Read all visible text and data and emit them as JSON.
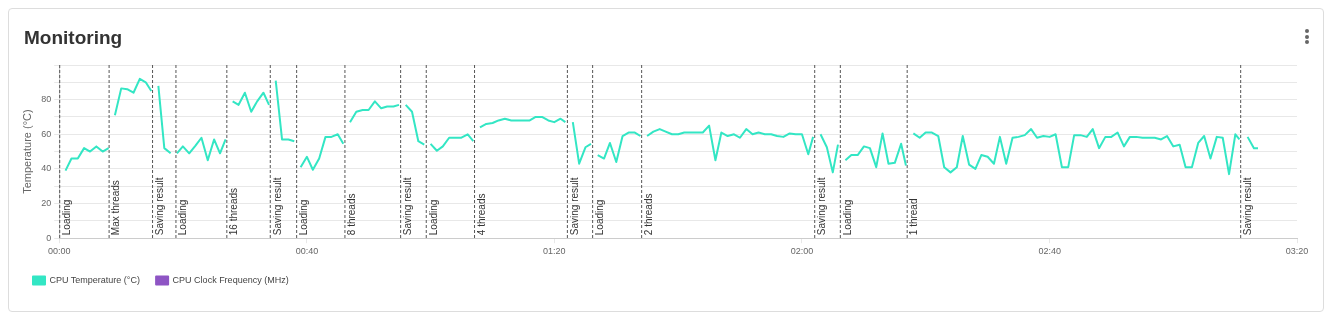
{
  "chart_data": {
    "type": "line",
    "title": "Monitoring",
    "ylabel": "Temperature (°C)",
    "xlim": [
      0,
      3.333
    ],
    "xticks": [
      {
        "value": 0,
        "label": "00:00"
      },
      {
        "value": 0.667,
        "label": "00:40"
      },
      {
        "value": 1.333,
        "label": "01:20"
      },
      {
        "value": 2,
        "label": "02:00"
      },
      {
        "value": 2.667,
        "label": "02:40"
      },
      {
        "value": 3.333,
        "label": "03:20"
      }
    ],
    "ylim": [
      0,
      100
    ],
    "yticks": [
      0,
      {
        "value": 10,
        "label": null
      },
      20,
      {
        "value": 30,
        "label": null
      },
      40,
      {
        "value": 50,
        "label": null
      },
      60,
      {
        "value": 70,
        "label": null
      },
      80,
      {
        "value": 90,
        "label": null
      },
      {
        "value": 100,
        "label": null
      }
    ],
    "grid": "y",
    "legend": "bottom",
    "series": [
      {
        "name": "CPU Temperature (°C)",
        "color": "#33e6c4",
        "x": [
          0.017,
          0.033,
          0.05,
          0.067,
          0.083,
          0.1,
          0.117,
          0.133,
          null,
          0.15,
          0.167,
          0.183,
          0.2,
          0.217,
          0.233,
          0.248,
          null,
          0.267,
          0.283,
          0.3,
          null,
          0.317,
          0.333,
          0.35,
          0.367,
          0.383,
          0.4,
          0.417,
          0.433,
          0.448,
          null,
          0.467,
          0.483,
          0.5,
          0.517,
          0.533,
          0.55,
          0.565,
          null,
          0.583,
          0.6,
          0.617,
          0.633,
          null,
          0.65,
          0.667,
          0.683,
          0.7,
          0.717,
          0.733,
          0.75,
          0.765,
          null,
          0.783,
          0.8,
          0.817,
          0.833,
          0.85,
          0.867,
          0.883,
          0.9,
          0.915,
          null,
          0.933,
          0.95,
          0.967,
          0.983,
          null,
          1.0,
          1.017,
          1.033,
          1.05,
          1.067,
          1.083,
          1.1,
          1.115,
          null,
          1.133,
          1.15,
          1.167,
          1.183,
          1.2,
          1.217,
          1.233,
          1.25,
          1.267,
          1.283,
          1.3,
          1.317,
          1.333,
          1.35,
          1.363,
          null,
          1.383,
          1.4,
          1.417,
          1.432,
          null,
          1.45,
          1.467,
          1.483,
          1.5,
          1.517,
          1.533,
          1.55,
          1.565,
          null,
          1.583,
          1.6,
          1.617,
          1.633,
          1.65,
          1.667,
          1.683,
          1.7,
          1.717,
          1.733,
          1.75,
          1.767,
          1.783,
          1.8,
          1.817,
          1.833,
          1.85,
          1.867,
          1.883,
          1.9,
          1.917,
          1.933,
          1.95,
          1.967,
          1.983,
          2.0,
          2.017,
          2.03,
          null,
          2.05,
          2.067,
          2.083,
          2.097,
          null,
          2.117,
          2.133,
          2.15,
          2.167,
          2.183,
          2.2,
          2.217,
          2.233,
          2.25,
          2.267,
          2.28,
          null,
          2.3,
          2.317,
          2.333,
          2.35,
          2.367,
          2.383,
          2.4,
          2.417,
          2.433,
          2.45,
          2.467,
          2.483,
          2.5,
          2.517,
          2.533,
          2.55,
          2.567,
          2.583,
          2.6,
          2.617,
          2.633,
          2.65,
          2.667,
          2.683,
          2.7,
          2.717,
          2.733,
          2.75,
          2.767,
          2.783,
          2.8,
          2.817,
          2.833,
          2.85,
          2.867,
          2.883,
          2.9,
          2.917,
          2.933,
          2.95,
          2.967,
          2.983,
          3.0,
          3.017,
          3.033,
          3.05,
          3.067,
          3.083,
          3.1,
          3.117,
          3.133,
          3.15,
          3.167,
          3.178,
          null,
          3.2,
          3.217,
          3.228
        ],
        "values": [
          39,
          46,
          46,
          52,
          50,
          53,
          50,
          52,
          null,
          71,
          86.5,
          86,
          84,
          92,
          90,
          85,
          null,
          88,
          52,
          49,
          null,
          49,
          53,
          49,
          53.5,
          58,
          45,
          57,
          49,
          57,
          null,
          79,
          77,
          84,
          73,
          79,
          84,
          77,
          null,
          91,
          57,
          57,
          56,
          null,
          41,
          47,
          39.5,
          46,
          58.5,
          58.5,
          60,
          54.5,
          null,
          67,
          73,
          74,
          74,
          79,
          75,
          76,
          76,
          77,
          null,
          77,
          73,
          56,
          54,
          null,
          54.5,
          50.5,
          53,
          58,
          58,
          58,
          60,
          56,
          null,
          64,
          66,
          66.5,
          68,
          69,
          68,
          68,
          68,
          68,
          70,
          70,
          68,
          67,
          69,
          67,
          null,
          67,
          43,
          52.5,
          54.5,
          null,
          48,
          46,
          55,
          44,
          59,
          61,
          61,
          59,
          null,
          59,
          61.5,
          63,
          61.5,
          60,
          60,
          61,
          61,
          61,
          61,
          65,
          45,
          61,
          59,
          60,
          58,
          63,
          60,
          61,
          60,
          60,
          59,
          58.5,
          60.5,
          60,
          60,
          48.5,
          58.5,
          null,
          60,
          52.5,
          38,
          54,
          null,
          45,
          48,
          48,
          53,
          52,
          41,
          60.5,
          43,
          43.5,
          54.5,
          42,
          null,
          60.5,
          58,
          61,
          61,
          59,
          41,
          38,
          41,
          59,
          42.5,
          40,
          48,
          47,
          43,
          58.5,
          43,
          58,
          58.5,
          59.5,
          63,
          58,
          59,
          58.5,
          60,
          41,
          41,
          59.5,
          59.5,
          58.5,
          63,
          52,
          58.5,
          58.5,
          61,
          53,
          58.5,
          58.5,
          58,
          58,
          58,
          57,
          59,
          53,
          54,
          41,
          41,
          55,
          59,
          46,
          58.5,
          58,
          37,
          60,
          57,
          null,
          58.5,
          52,
          52
        ]
      },
      {
        "name": "CPU Clock Frequency (MHz)",
        "color": "#8e55c4"
      }
    ],
    "ref_lines": [
      {
        "axis": "x",
        "value": 0,
        "label": "Loading"
      },
      {
        "axis": "x",
        "value": 0.133,
        "label": "Max threads"
      },
      {
        "axis": "x",
        "value": 0.25,
        "label": "Saving result"
      },
      {
        "axis": "x",
        "value": 0.313,
        "label": "Loading"
      },
      {
        "axis": "x",
        "value": 0.45,
        "label": "16 threads"
      },
      {
        "axis": "x",
        "value": 0.567,
        "label": "Saving result"
      },
      {
        "axis": "x",
        "value": 0.638,
        "label": "Loading"
      },
      {
        "axis": "x",
        "value": 0.768,
        "label": "8 threads"
      },
      {
        "axis": "x",
        "value": 0.918,
        "label": "Saving result"
      },
      {
        "axis": "x",
        "value": 0.987,
        "label": "Loading"
      },
      {
        "axis": "x",
        "value": 1.117,
        "label": "4 threads"
      },
      {
        "axis": "x",
        "value": 1.367,
        "label": "Saving result"
      },
      {
        "axis": "x",
        "value": 1.435,
        "label": "Loading"
      },
      {
        "axis": "x",
        "value": 1.567,
        "label": "2 threads"
      },
      {
        "axis": "x",
        "value": 2.033,
        "label": "Saving result"
      },
      {
        "axis": "x",
        "value": 2.102,
        "label": "Loading"
      },
      {
        "axis": "x",
        "value": 2.282,
        "label": "1 thread"
      },
      {
        "axis": "x",
        "value": 3.18,
        "label": "Saving result"
      }
    ]
  }
}
